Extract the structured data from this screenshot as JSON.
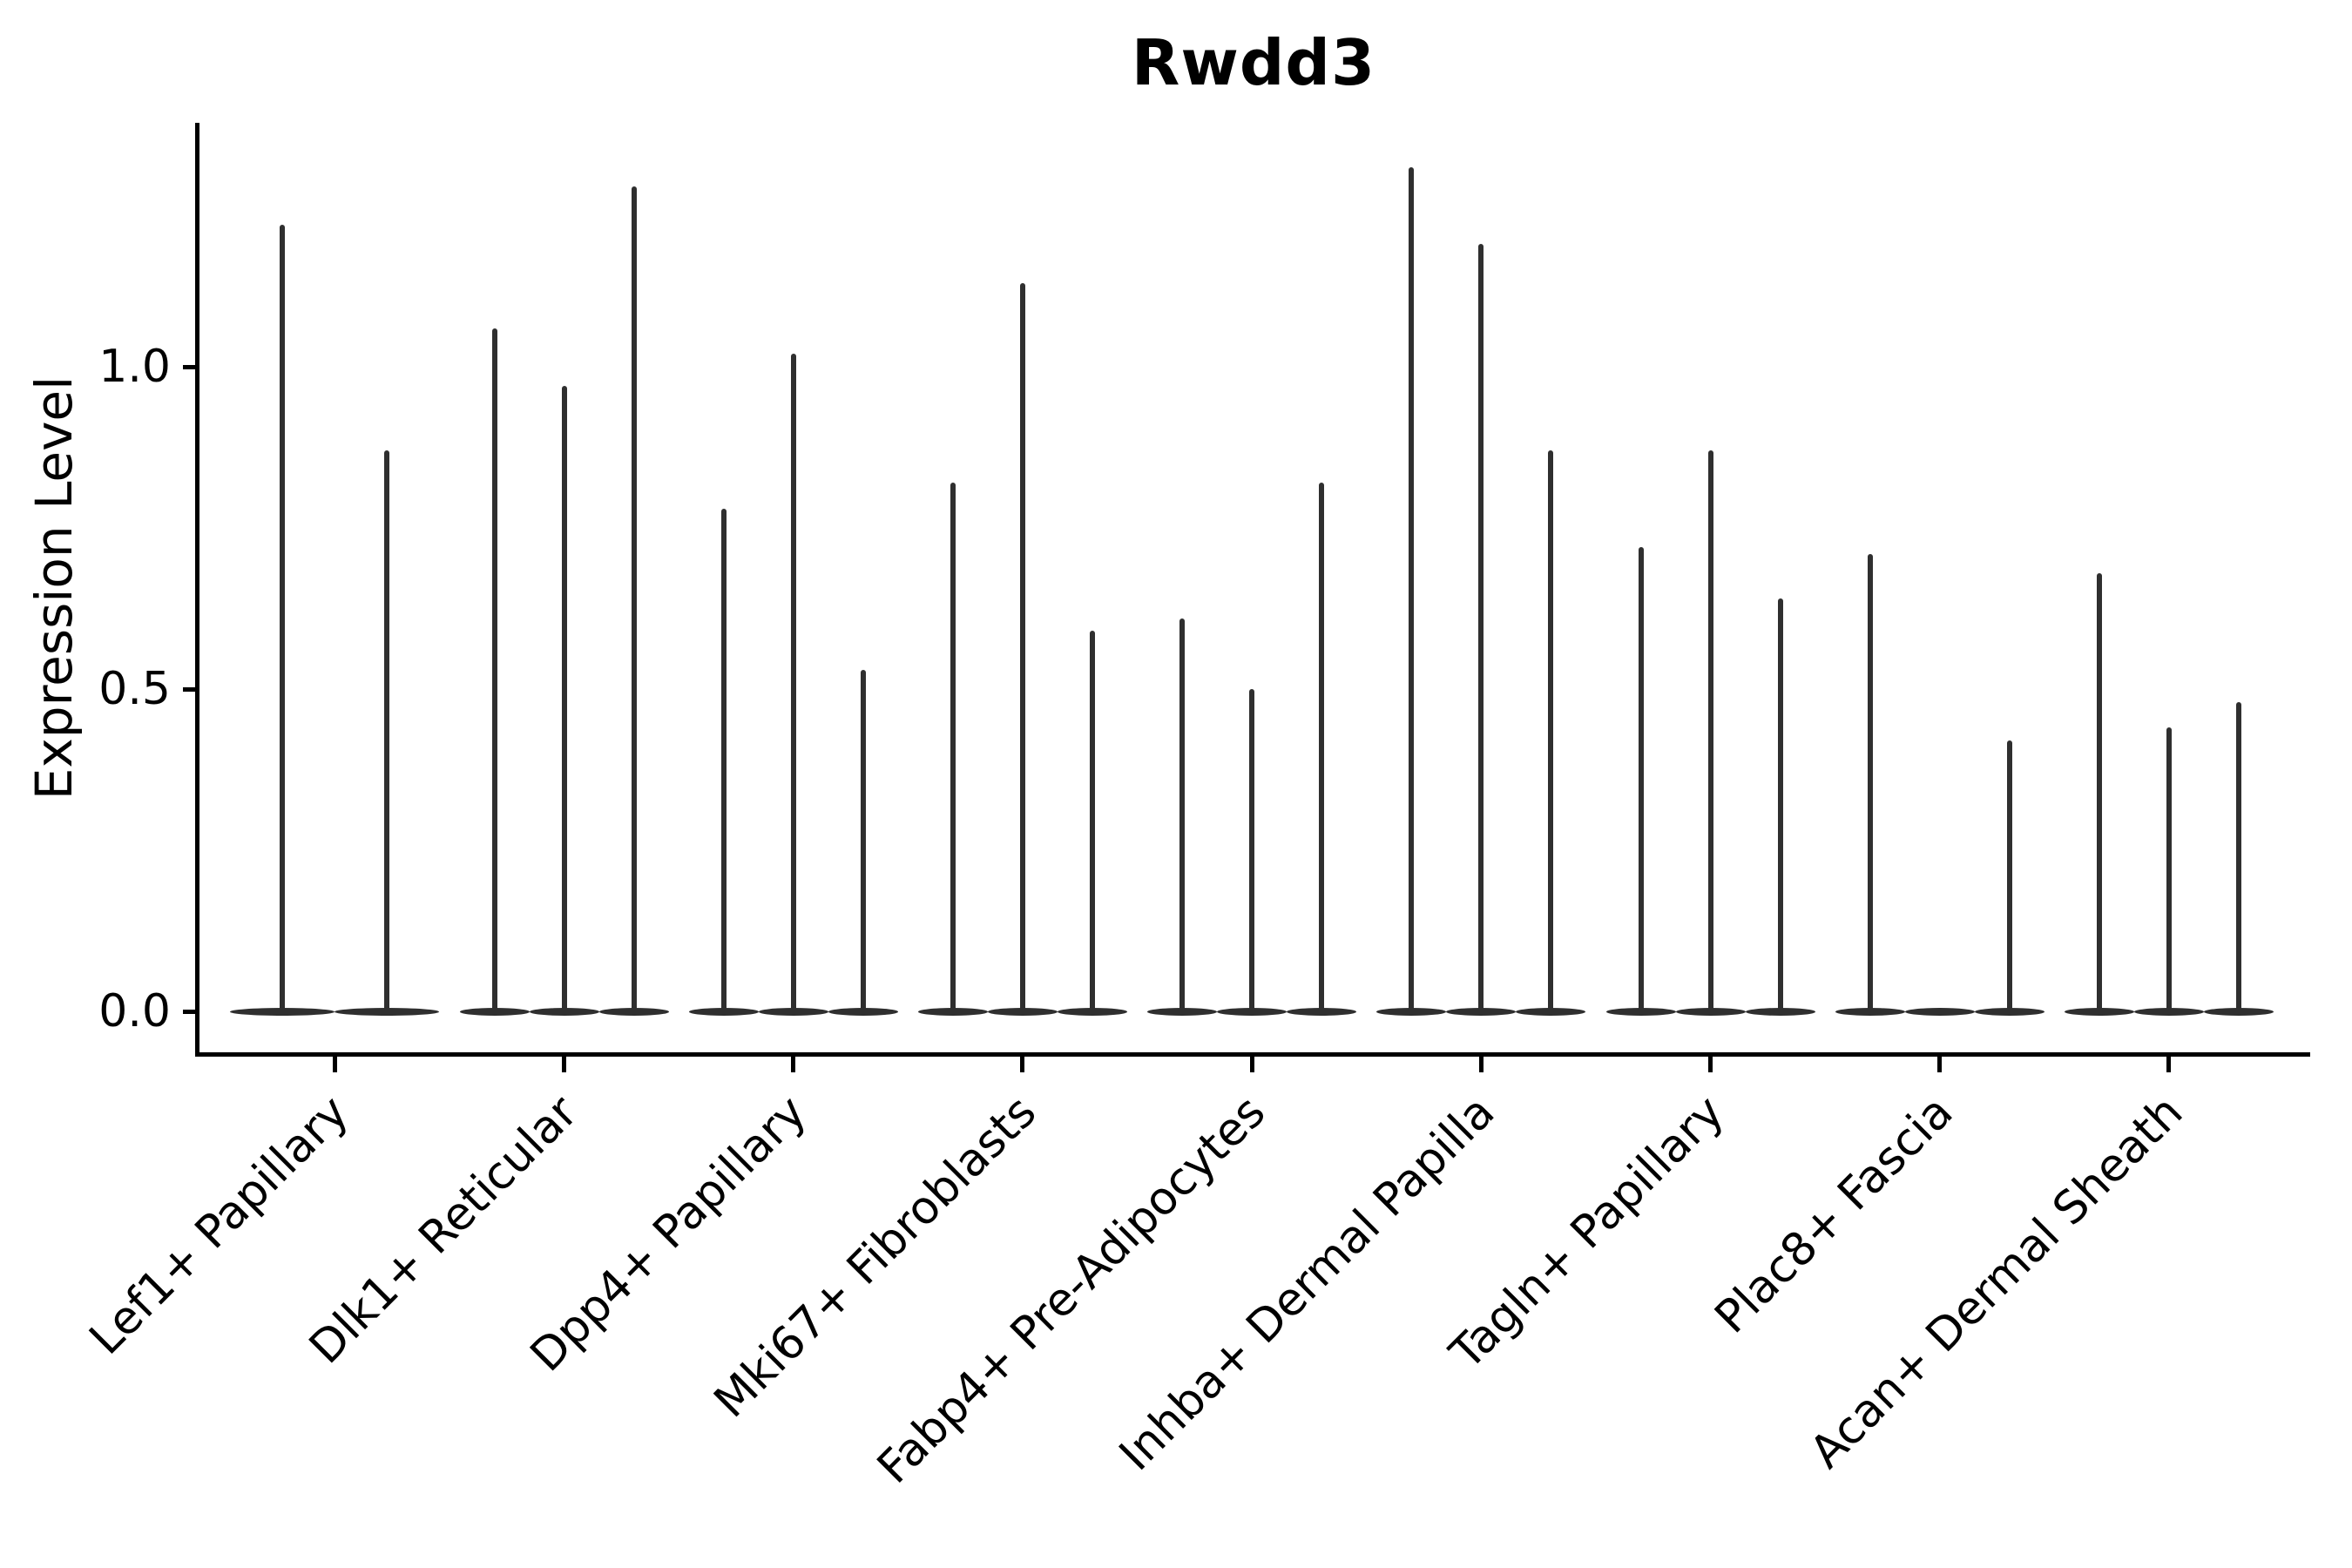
{
  "chart_data": {
    "type": "violin",
    "title": "Rwdd3",
    "xlabel": "",
    "ylabel": "Expression Level",
    "grid": false,
    "legend": "none",
    "ylim": [
      -0.065,
      1.375
    ],
    "yticks": [
      {
        "label": "0.0",
        "value": 0.0
      },
      {
        "label": "0.5",
        "value": 0.5
      },
      {
        "label": "1.0",
        "value": 1.0
      }
    ],
    "categories": [
      "Lef1+ Papillary",
      "Dlk1+ Reticular",
      "Dpp4+ Papillary",
      "Mki67+ Fibroblasts",
      "Fabp4+ Pre-Adipocytes",
      "Inhba+ Dermal Papilla",
      "Tagln+ Papillary",
      "Plac8+ Fascia",
      "Acan+ Dermal Sheath"
    ],
    "groups": [
      {
        "label": "Lef1+ Papillary",
        "violin_maxima": [
          1.22,
          0.87
        ]
      },
      {
        "label": "Dlk1+ Reticular",
        "violin_maxima": [
          1.06,
          0.97,
          1.28
        ]
      },
      {
        "label": "Dpp4+ Papillary",
        "violin_maxima": [
          0.78,
          1.02,
          0.53
        ]
      },
      {
        "label": "Mki67+ Fibroblasts",
        "violin_maxima": [
          0.82,
          1.13,
          0.59
        ]
      },
      {
        "label": "Fabp4+ Pre-Adipocytes",
        "violin_maxima": [
          0.61,
          0.5,
          0.82
        ]
      },
      {
        "label": "Inhba+ Dermal Papilla",
        "violin_maxima": [
          1.31,
          1.19,
          0.87
        ]
      },
      {
        "label": "Tagln+ Papillary",
        "violin_maxima": [
          0.72,
          0.87,
          0.64
        ]
      },
      {
        "label": "Plac8+ Fascia",
        "violin_maxima": [
          0.71,
          0.0,
          0.42
        ]
      },
      {
        "label": "Acan+ Dermal Sheath",
        "violin_maxima": [
          0.68,
          0.44,
          0.48
        ]
      }
    ],
    "note": "All violins are bottom-heavy: wide flat body at 0 with a thin spike up to the max value. Plac8+ Fascia middle violin is entirely at 0 (no spike).",
    "colors": {
      "violin": "#2f2f2f",
      "axis": "#000000",
      "text": "#000000",
      "background": "#ffffff"
    }
  }
}
